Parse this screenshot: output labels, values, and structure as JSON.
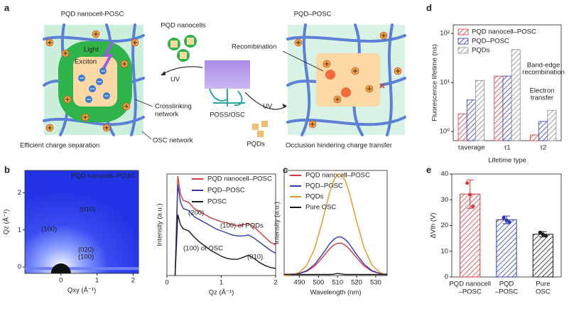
{
  "labels": {
    "a": "a",
    "b": "b",
    "c": "c",
    "d": "d",
    "e": "e"
  },
  "diagram": {
    "left_title": "PQD nanocell-POSC",
    "light": "Light",
    "exciton": "Exciton",
    "pqd_nanocells": "PQD nanocells",
    "uv_left": "UV",
    "uv_right": "UV",
    "poss_osc": "POSS/OSC",
    "crosslinking_network": [
      "Crosslinking",
      "network"
    ],
    "osc_network": "OSC network",
    "left_caption": "Efficient charge separation",
    "right_title": "PQD–POSC",
    "recombination": "Recombination",
    "pqds": "PQDs",
    "right_caption": "Occlusion hindering charge transfer"
  },
  "chart_data": [
    {
      "type": "image",
      "title": "PQD nanocell–POSC",
      "xlabel": "Qxy (Å⁻¹)",
      "ylabel": "Qz (Å⁻¹)",
      "xlim": [
        -1,
        2.15
      ],
      "ylim": [
        -0.17,
        2.6
      ],
      "xticks": [
        0,
        1,
        2
      ],
      "yticks": [
        0,
        1,
        2
      ],
      "annotations": [
        "(010)",
        "(100)",
        "(020)",
        "(100)"
      ]
    },
    {
      "type": "line",
      "xlabel": "Qz (Å⁻¹)",
      "ylabel": "Intensity (a.u.)",
      "xlim": [
        0,
        2
      ],
      "xticks": [
        0,
        1,
        2
      ],
      "ylim": [
        0,
        10
      ],
      "x": [
        0.15,
        0.2,
        0.25,
        0.3,
        0.4,
        0.5,
        0.6,
        0.7,
        0.8,
        0.9,
        1.0,
        1.1,
        1.2,
        1.3,
        1.4,
        1.5,
        1.6,
        1.7,
        1.8,
        1.9,
        2.0
      ],
      "series": [
        {
          "name": "PQD nanocell–POSC",
          "color": "#d9363e",
          "values": [
            0,
            9.8,
            8.0,
            7.4,
            7.2,
            6.6,
            6.3,
            6.0,
            5.7,
            5.5,
            5.3,
            5.2,
            5.0,
            4.9,
            5.0,
            5.1,
            4.8,
            4.3,
            3.8,
            3.3,
            3.0
          ]
        },
        {
          "name": "PQD–POSC",
          "color": "#2f3bb0",
          "values": [
            0,
            9.0,
            7.2,
            6.6,
            6.4,
            5.8,
            5.5,
            5.2,
            4.9,
            4.6,
            4.4,
            4.2,
            4.0,
            3.9,
            3.9,
            4.0,
            3.7,
            3.3,
            2.9,
            2.5,
            2.2
          ]
        },
        {
          "name": "POSC",
          "color": "#1a1a1a",
          "values": [
            0,
            6.0,
            5.0,
            4.6,
            4.4,
            3.8,
            3.3,
            2.9,
            2.5,
            2.2,
            1.9,
            1.7,
            1.6,
            1.6,
            1.8,
            2.0,
            1.7,
            1.3,
            1.0,
            0.8,
            0.7
          ]
        }
      ],
      "annotations": [
        "(200)",
        "(100) of PQDs",
        "(100) of OSC",
        "(010)"
      ]
    },
    {
      "type": "line",
      "xlabel": "Wavelength (nm)",
      "ylabel": "Intensity (a.u.)",
      "xlim": [
        482,
        536
      ],
      "xticks": [
        490,
        500,
        510,
        520,
        530
      ],
      "ylim": [
        0,
        10
      ],
      "x": [
        482,
        486,
        490,
        494,
        498,
        502,
        506,
        508,
        510,
        512,
        514,
        516,
        520,
        524,
        528,
        532,
        536
      ],
      "series": [
        {
          "name": "PQD nanocell–POSC",
          "color": "#d9363e",
          "values": [
            0.1,
            0.12,
            0.2,
            0.41,
            0.9,
            1.7,
            2.57,
            2.9,
            3.08,
            3.08,
            2.9,
            2.57,
            1.7,
            0.9,
            0.41,
            0.2,
            0.12
          ]
        },
        {
          "name": "PQD–POSC",
          "color": "#2f3bb0",
          "values": [
            0.1,
            0.13,
            0.21,
            0.47,
            1.06,
            2.0,
            3.05,
            3.44,
            3.66,
            3.66,
            3.44,
            3.05,
            2.0,
            1.06,
            0.47,
            0.21,
            0.13
          ]
        },
        {
          "name": "PQDs",
          "color": "#e09a1e",
          "values": [
            0.01,
            0.07,
            0.31,
            1.01,
            2.59,
            5.15,
            7.98,
            9.04,
            9.62,
            9.62,
            9.04,
            7.98,
            5.15,
            2.59,
            1.01,
            0.31,
            0.07
          ]
        },
        {
          "name": "Pure OSC",
          "color": "#1a1a1a",
          "values": [
            0.1,
            0.1,
            0.1,
            0.1,
            0.1,
            0.1,
            0.1,
            0.12,
            0.2,
            0.15,
            0.1,
            0.1,
            0.1,
            0.1,
            0.1,
            0.1,
            0.1
          ]
        }
      ]
    },
    {
      "type": "bar",
      "log_scale": true,
      "xlabel": "Lifetime type",
      "ylabel": "Fluorescence lifetime (ns)",
      "categories": [
        "τaverage",
        "τ1",
        "τ2"
      ],
      "ylim": [
        0.65,
        150
      ],
      "yticks": [
        {
          "value": 1,
          "label": "10⁰"
        },
        {
          "value": 10,
          "label": "10¹"
        },
        {
          "value": 100,
          "label": "10²"
        }
      ],
      "series": [
        {
          "name": "PQD nanocell–POSC",
          "color": "#d9363e",
          "values": [
            2.3,
            13.5,
            0.85
          ]
        },
        {
          "name": "PQD–POSC",
          "color": "#2f3bb0",
          "values": [
            4.4,
            13.5,
            1.6
          ]
        },
        {
          "name": "PQDs",
          "color": "#8a8a8a",
          "values": [
            11,
            47,
            2.7
          ]
        }
      ],
      "annotations": [
        [
          "Band-edge",
          "recombination"
        ],
        [
          "Electron",
          "transfer"
        ]
      ]
    },
    {
      "type": "bar",
      "ylabel": "ΔVth (V)",
      "ylim": [
        0,
        40
      ],
      "yticks": [
        0,
        10,
        20,
        30,
        40
      ],
      "categories": [
        [
          "PQD nanocell",
          "–POSC"
        ],
        [
          "PQD",
          "–POSC"
        ],
        [
          "Pure",
          "OSC"
        ]
      ],
      "colors": [
        "#d9363e",
        "#2f3bb0",
        "#1a1a1a"
      ],
      "values": [
        32.2,
        22.2,
        16.6
      ],
      "errors": [
        5.5,
        1.5,
        1.0
      ],
      "points": [
        [
          36.5,
          32,
          27.5
        ],
        [
          23,
          22,
          21.3
        ],
        [
          17.3,
          16.5,
          16
        ]
      ]
    }
  ]
}
